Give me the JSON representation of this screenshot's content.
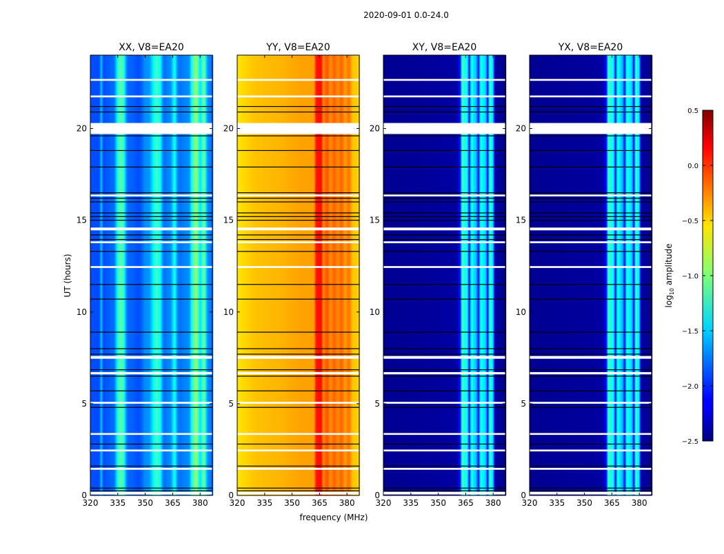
{
  "chart_data": {
    "type": "heatmap",
    "suptitle": "2020-09-01 0.0-24.0",
    "xlabel": "frequency (MHz)",
    "ylabel": "UT (hours)",
    "xlim": [
      320,
      386.7
    ],
    "ylim": [
      0,
      24
    ],
    "xticks": [
      "320",
      "335",
      "350",
      "365",
      "380"
    ],
    "xtick_values": [
      320,
      335,
      350,
      365,
      380
    ],
    "yticks": [
      "0",
      "5",
      "10",
      "15",
      "20"
    ],
    "ytick_values": [
      0,
      5,
      10,
      15,
      20
    ],
    "colorbar": {
      "label": "log10 amplitude",
      "label_main": "log",
      "label_sub": "10",
      "label_rest": " amplitude",
      "range": [
        -2.5,
        0.5
      ],
      "ticks": [
        "0.5",
        "0.0",
        "−0.5",
        "−1.0",
        "−1.5",
        "−2.0",
        "−2.5"
      ],
      "tick_values": [
        0.5,
        0.0,
        -0.5,
        -1.0,
        -1.5,
        -2.0,
        -2.5
      ],
      "colormap": "jet"
    },
    "flagged_hours": [
      [
        19.7,
        20.3
      ],
      [
        14.45,
        14.6
      ],
      [
        13.75,
        13.85
      ],
      [
        7.45,
        7.6
      ],
      [
        6.6,
        6.72
      ],
      [
        0.05,
        0.2
      ],
      [
        22.6,
        22.7
      ],
      [
        21.7,
        21.8
      ],
      [
        16.3,
        16.4
      ],
      [
        12.4,
        12.5
      ],
      [
        5.0,
        5.1
      ],
      [
        3.3,
        3.4
      ],
      [
        2.4,
        2.5
      ],
      [
        1.4,
        1.5
      ]
    ],
    "black_lines_hours": [
      0.25,
      0.4,
      1.6,
      2.8,
      4.8,
      5.7,
      6.5,
      6.85,
      7.7,
      8.0,
      8.9,
      10.7,
      11.5,
      13.3,
      13.95,
      14.2,
      15.0,
      15.2,
      15.4,
      16.0,
      16.2,
      16.5,
      17.9,
      18.8,
      19.6,
      20.9,
      21.2
    ],
    "panels": [
      {
        "title": "XX, V8=EA20",
        "show_ylabel": true,
        "profile": [
          [
            320,
            -1.9
          ],
          [
            325,
            -1.9
          ],
          [
            326,
            -1.5
          ],
          [
            327,
            -1.9
          ],
          [
            333,
            -1.8
          ],
          [
            336,
            -1.1
          ],
          [
            338,
            -1.2
          ],
          [
            340,
            -1.8
          ],
          [
            347,
            -1.9
          ],
          [
            350,
            -1.7
          ],
          [
            352,
            -1.7
          ],
          [
            356,
            -1.2
          ],
          [
            358,
            -1.3
          ],
          [
            360,
            -1.8
          ],
          [
            364,
            -1.7
          ],
          [
            366,
            -1.3
          ],
          [
            368,
            -1.8
          ],
          [
            374,
            -1.7
          ],
          [
            376,
            -1.2
          ],
          [
            378,
            -0.9
          ],
          [
            380,
            -1.5
          ],
          [
            382,
            -1.0
          ],
          [
            384,
            -1.7
          ],
          [
            386.7,
            -1.8
          ]
        ]
      },
      {
        "title": "YY, V8=EA20",
        "show_ylabel": false,
        "profile": [
          [
            320,
            -0.55
          ],
          [
            330,
            -0.45
          ],
          [
            345,
            -0.4
          ],
          [
            355,
            -0.35
          ],
          [
            362,
            -0.35
          ],
          [
            363,
            0.05
          ],
          [
            366,
            0.1
          ],
          [
            367,
            -0.3
          ],
          [
            369,
            -0.1
          ],
          [
            371,
            -0.3
          ],
          [
            373,
            -0.15
          ],
          [
            375,
            -0.3
          ],
          [
            377,
            -0.15
          ],
          [
            379,
            -0.35
          ],
          [
            381,
            -0.2
          ],
          [
            383,
            -0.45
          ],
          [
            386.7,
            -0.5
          ]
        ]
      },
      {
        "title": "XY, V8=EA20",
        "show_ylabel": false,
        "profile": [
          [
            320,
            -2.45
          ],
          [
            360,
            -2.4
          ],
          [
            362,
            -2.1
          ],
          [
            363,
            -1.2
          ],
          [
            366,
            -1.4
          ],
          [
            367,
            -2.2
          ],
          [
            368,
            -1.3
          ],
          [
            371,
            -1.6
          ],
          [
            372,
            -2.2
          ],
          [
            373,
            -1.3
          ],
          [
            376,
            -1.5
          ],
          [
            377,
            -2.2
          ],
          [
            378,
            -1.2
          ],
          [
            380,
            -1.5
          ],
          [
            381,
            -2.4
          ],
          [
            386.7,
            -2.45
          ]
        ]
      },
      {
        "title": "YX, V8=EA20",
        "show_ylabel": false,
        "profile": [
          [
            320,
            -2.45
          ],
          [
            360,
            -2.4
          ],
          [
            362,
            -2.1
          ],
          [
            363,
            -1.2
          ],
          [
            366,
            -1.4
          ],
          [
            367,
            -2.2
          ],
          [
            368,
            -1.3
          ],
          [
            371,
            -1.6
          ],
          [
            372,
            -2.2
          ],
          [
            373,
            -1.3
          ],
          [
            376,
            -1.5
          ],
          [
            377,
            -2.2
          ],
          [
            378,
            -1.2
          ],
          [
            380,
            -1.5
          ],
          [
            381,
            -2.4
          ],
          [
            386.7,
            -2.45
          ]
        ]
      }
    ]
  }
}
